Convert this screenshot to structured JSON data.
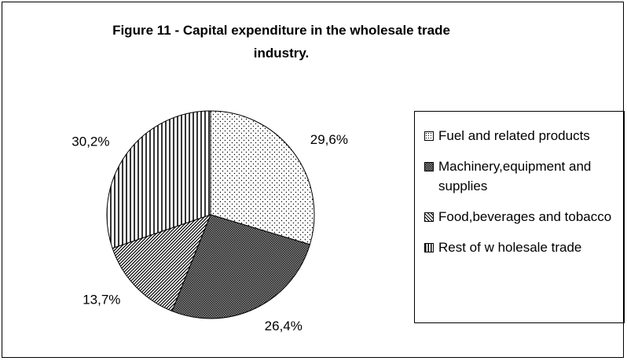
{
  "chart_data": {
    "type": "pie",
    "title": "Figure 11 - Capital expenditure in the wholesale trade industry.",
    "categories": [
      "Fuel and related products",
      "Machinery,equipment and supplies",
      "Food,beverages and tobacco",
      "Rest of w holesale trade"
    ],
    "values": [
      29.6,
      26.4,
      13.7,
      30.2
    ],
    "value_labels": [
      "29,6%",
      "26,4%",
      "13,7%",
      "30,2%"
    ],
    "legend": "right"
  }
}
